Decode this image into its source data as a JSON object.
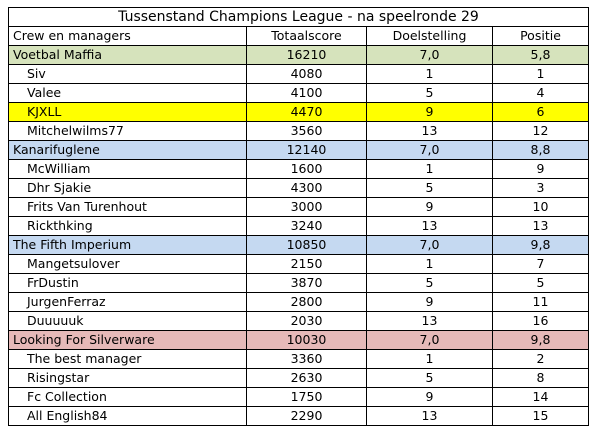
{
  "title": "Tussenstand Champions League - na speelronde 29",
  "headers": [
    "Crew en managers",
    "Totaalscore",
    "Doelstelling",
    "Positie"
  ],
  "colors": {
    "team_bg": [
      "#d6e3bc",
      "#c5d9f1",
      "#c5d9f1",
      "#e6b9b8"
    ],
    "highlight": "#ffff00"
  },
  "rows": [
    {
      "type": "team",
      "t": 0,
      "name": "Voetbal Maffia",
      "score": "16210",
      "goal": "7,0",
      "pos": "5,8"
    },
    {
      "type": "mgr",
      "name": "Siv",
      "score": "4080",
      "goal": "1",
      "pos": "1"
    },
    {
      "type": "mgr",
      "name": "Valee",
      "score": "4100",
      "goal": "5",
      "pos": "4"
    },
    {
      "type": "mgr",
      "name": "KJXLL",
      "score": "4470",
      "goal": "9",
      "pos": "6",
      "highlight": true
    },
    {
      "type": "mgr",
      "name": "Mitchelwilms77",
      "score": "3560",
      "goal": "13",
      "pos": "12"
    },
    {
      "type": "team",
      "t": 1,
      "name": "Kanarifuglene",
      "score": "12140",
      "goal": "7,0",
      "pos": "8,8"
    },
    {
      "type": "mgr",
      "name": "McWilliam",
      "score": "1600",
      "goal": "1",
      "pos": "9"
    },
    {
      "type": "mgr",
      "name": "Dhr Sjakie",
      "score": "4300",
      "goal": "5",
      "pos": "3"
    },
    {
      "type": "mgr",
      "name": "Frits Van Turenhout",
      "score": "3000",
      "goal": "9",
      "pos": "10"
    },
    {
      "type": "mgr",
      "name": "Rickthking",
      "score": "3240",
      "goal": "13",
      "pos": "13"
    },
    {
      "type": "team",
      "t": 2,
      "name": "The Fifth Imperium",
      "score": "10850",
      "goal": "7,0",
      "pos": "9,8"
    },
    {
      "type": "mgr",
      "name": "Mangetsulover",
      "score": "2150",
      "goal": "1",
      "pos": "7"
    },
    {
      "type": "mgr",
      "name": "FrDustin",
      "score": "3870",
      "goal": "5",
      "pos": "5"
    },
    {
      "type": "mgr",
      "name": "JurgenFerraz",
      "score": "2800",
      "goal": "9",
      "pos": "11"
    },
    {
      "type": "mgr",
      "name": "Duuuuuk",
      "score": "2030",
      "goal": "13",
      "pos": "16"
    },
    {
      "type": "team",
      "t": 3,
      "name": "Looking For Silverware",
      "score": "10030",
      "goal": "7,0",
      "pos": "9,8"
    },
    {
      "type": "mgr",
      "name": "The best manager",
      "score": "3360",
      "goal": "1",
      "pos": "2"
    },
    {
      "type": "mgr",
      "name": "Risingstar",
      "score": "2630",
      "goal": "5",
      "pos": "8"
    },
    {
      "type": "mgr",
      "name": "Fc Collection",
      "score": "1750",
      "goal": "9",
      "pos": "14"
    },
    {
      "type": "mgr",
      "name": "All English84",
      "score": "2290",
      "goal": "13",
      "pos": "15"
    }
  ]
}
